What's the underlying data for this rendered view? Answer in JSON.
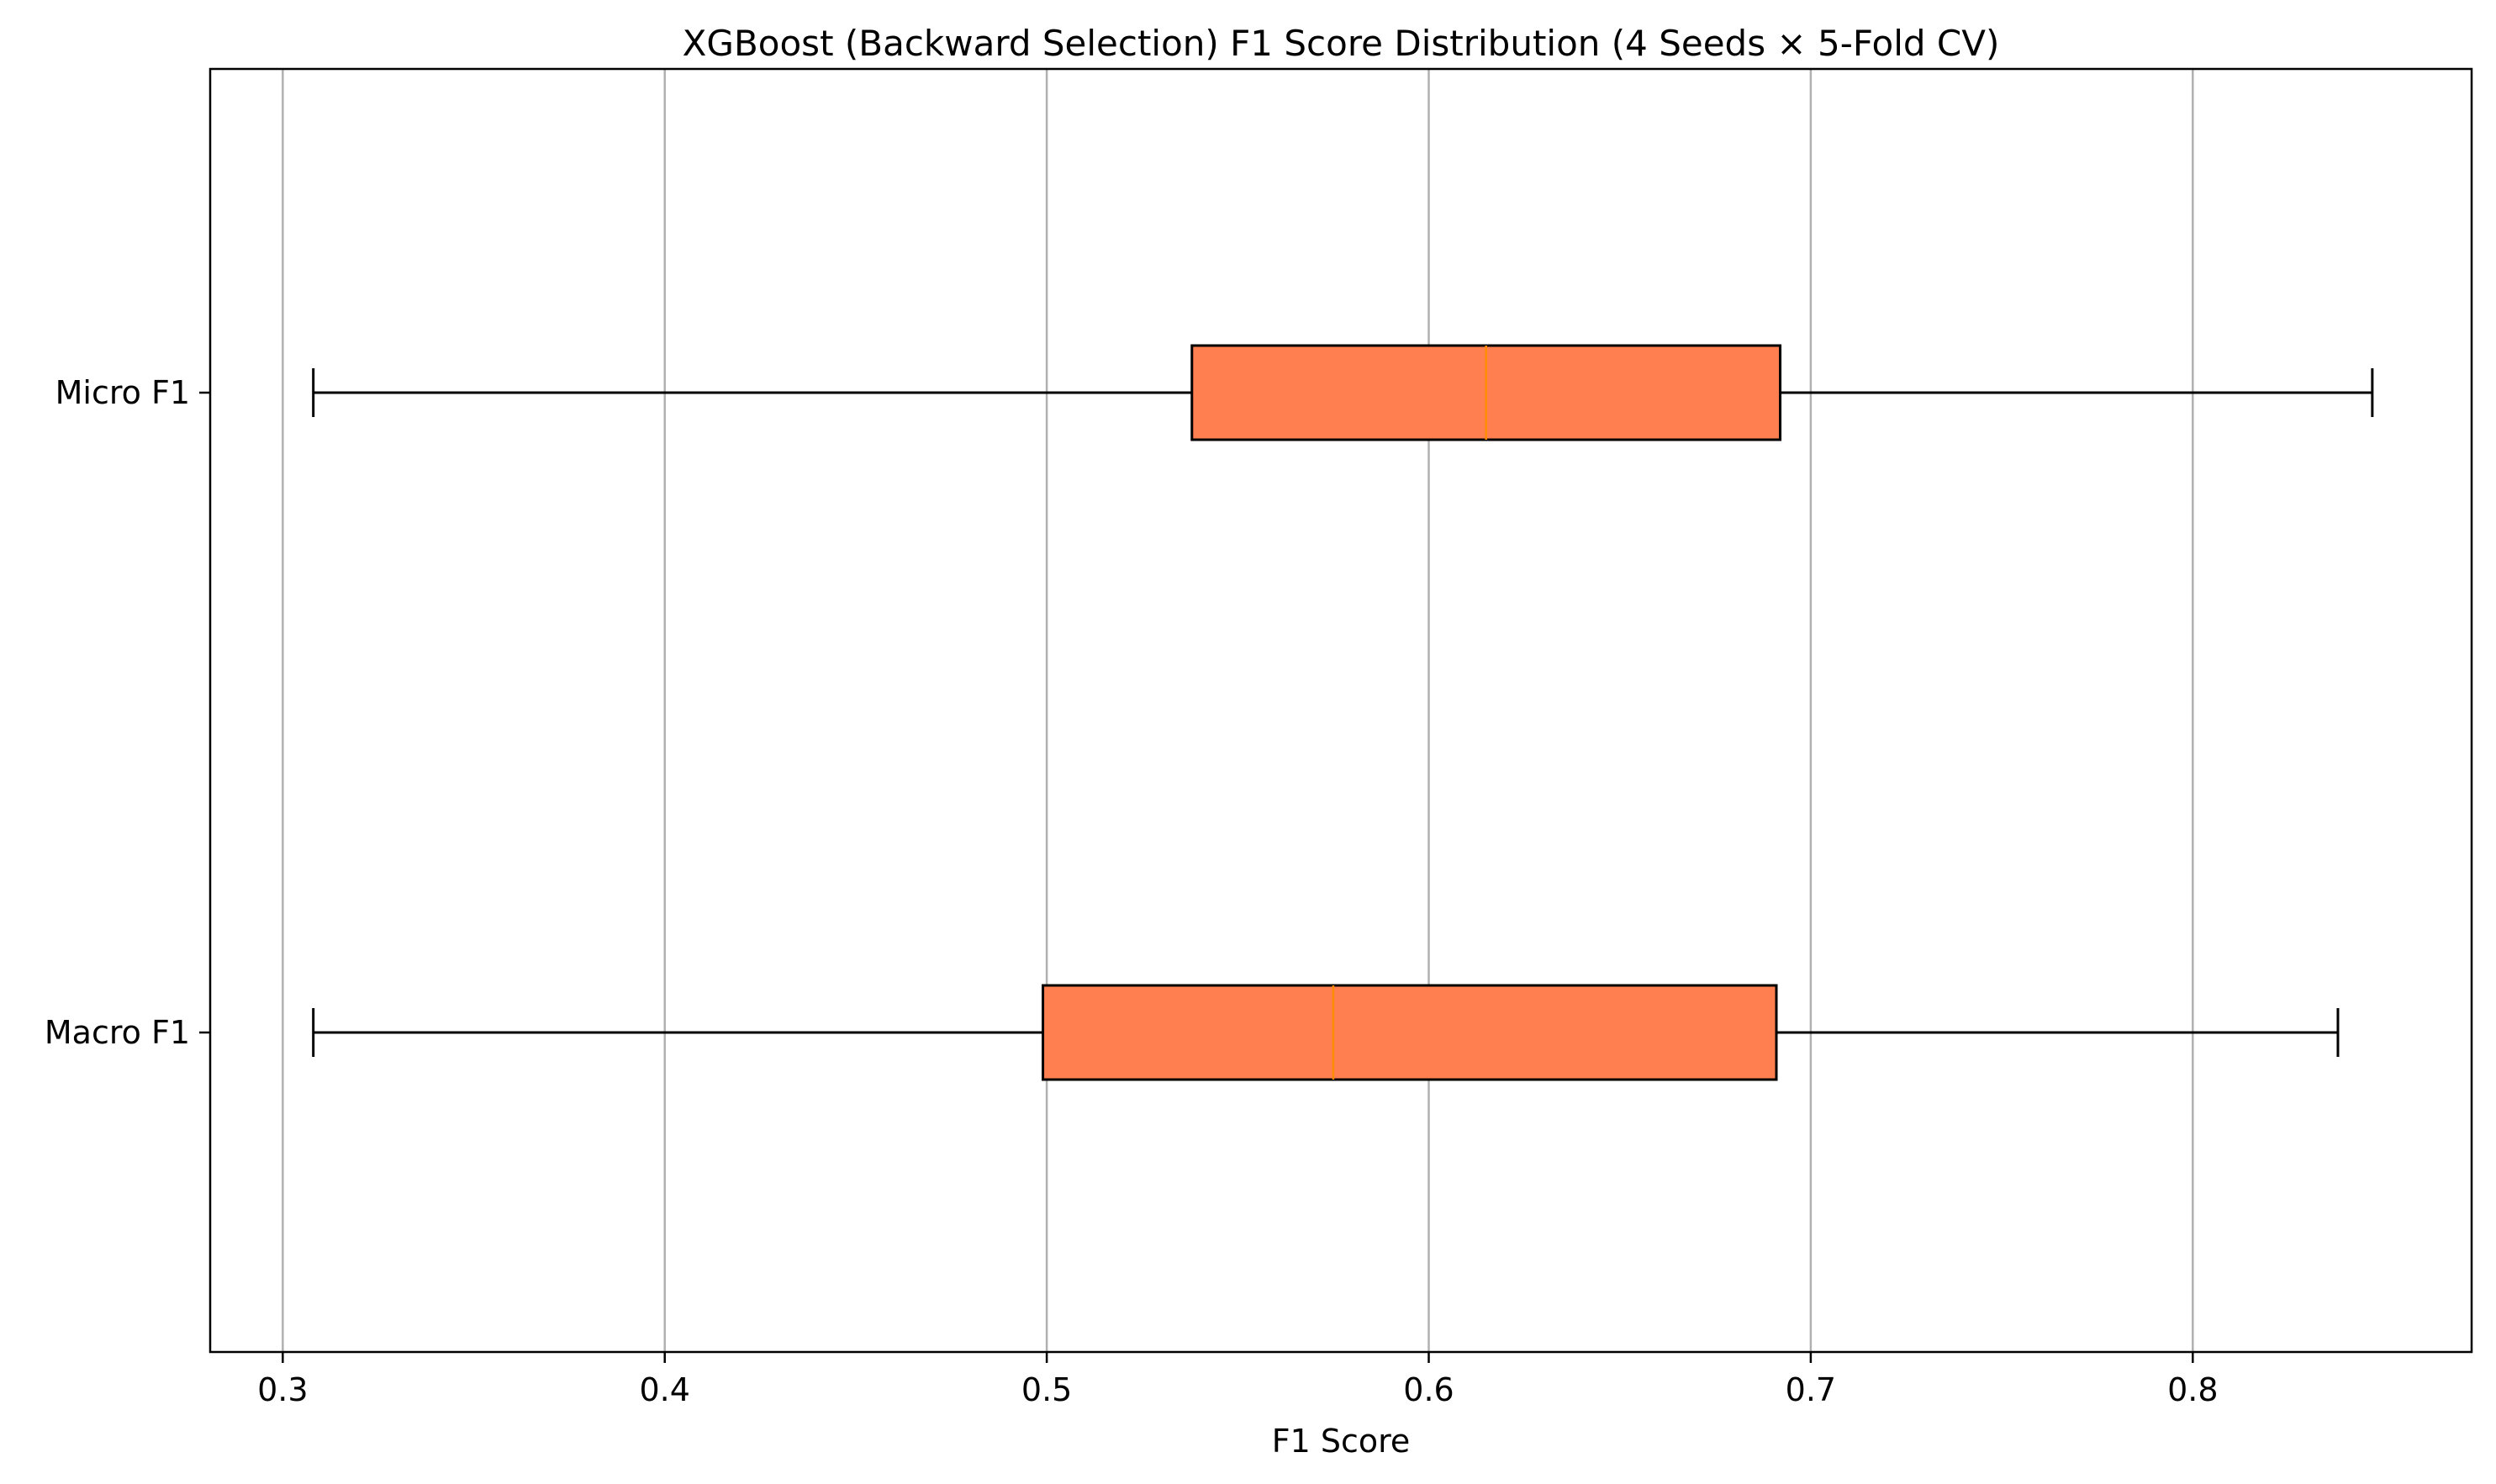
{
  "chart_data": {
    "type": "boxplot",
    "orientation": "horizontal",
    "title": "XGBoost  (Backward Selection) F1 Score Distribution (4 Seeds × 5-Fold CV)",
    "xlabel": "F1 Score",
    "ylabel": "",
    "xlim": [
      0.281,
      0.873
    ],
    "xticks": [
      0.3,
      0.4,
      0.5,
      0.6,
      0.7,
      0.8
    ],
    "xtick_labels": [
      "0.3",
      "0.4",
      "0.5",
      "0.6",
      "0.7",
      "0.8"
    ],
    "grid": "x-axis vertical lines",
    "colors": {
      "box_fill": "#FF7F50",
      "box_edge": "#000000",
      "median": "#FF8C00",
      "whisker": "#000000",
      "grid": "#b0b0b0"
    },
    "categories": [
      "Micro F1",
      "Macro F1"
    ],
    "series": [
      {
        "category": "Micro F1",
        "whisker_low": 0.308,
        "q1": 0.538,
        "median": 0.615,
        "q3": 0.692,
        "whisker_high": 0.847
      },
      {
        "category": "Macro F1",
        "whisker_low": 0.308,
        "q1": 0.499,
        "median": 0.575,
        "q3": 0.691,
        "whisker_high": 0.838
      }
    ]
  }
}
